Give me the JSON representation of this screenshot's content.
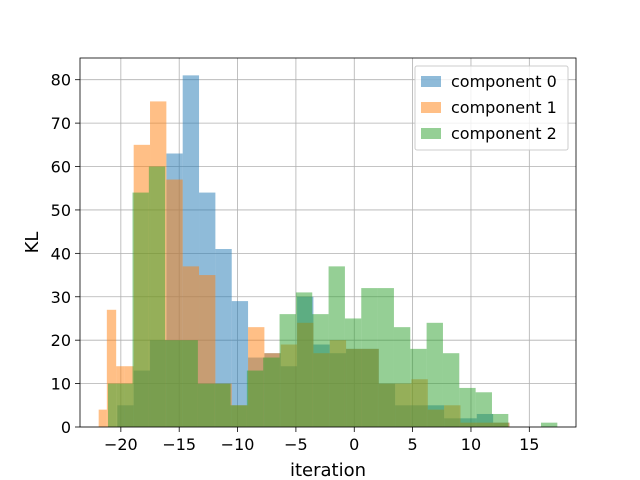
{
  "chart_data": {
    "type": "histogram",
    "title": "",
    "xlabel": "iteration",
    "ylabel": "KL",
    "xlim": [
      -23.5,
      19
    ],
    "ylim": [
      0,
      85
    ],
    "xticks": [
      -20,
      -15,
      -10,
      -5,
      0,
      5,
      10,
      15
    ],
    "yticks": [
      0,
      10,
      20,
      30,
      40,
      50,
      60,
      70,
      80
    ],
    "grid": true,
    "legend_position": "top-right",
    "series": [
      {
        "name": "component 0",
        "color": "#1f77b4",
        "opacity": 0.5,
        "bins": [
          [
            -20.3,
            -18.9,
            5
          ],
          [
            -18.9,
            -17.5,
            13
          ],
          [
            -17.5,
            -16.1,
            20
          ],
          [
            -16.1,
            -14.7,
            63
          ],
          [
            -14.7,
            -13.3,
            81
          ],
          [
            -13.3,
            -11.9,
            54
          ],
          [
            -11.9,
            -10.5,
            41
          ],
          [
            -10.5,
            -9.1,
            29
          ],
          [
            -9.1,
            -7.7,
            16
          ],
          [
            -7.7,
            -6.3,
            17
          ],
          [
            -6.3,
            -4.9,
            14
          ],
          [
            -4.9,
            -3.5,
            30
          ],
          [
            -3.5,
            -2.1,
            19
          ],
          [
            -2.1,
            -0.7,
            17
          ],
          [
            -0.7,
            0.7,
            18
          ],
          [
            0.7,
            2.1,
            18
          ],
          [
            2.1,
            3.5,
            10
          ],
          [
            3.5,
            4.9,
            5
          ],
          [
            4.9,
            6.3,
            5
          ],
          [
            6.3,
            7.7,
            5
          ],
          [
            7.7,
            9.1,
            2
          ],
          [
            9.1,
            10.5,
            2
          ],
          [
            10.5,
            11.9,
            3
          ],
          [
            11.9,
            13.3,
            1
          ]
        ]
      },
      {
        "name": "component 1",
        "color": "#ff7f0e",
        "opacity": 0.5,
        "bins": [
          [
            -21.9,
            -21.2,
            4
          ],
          [
            -21.2,
            -20.4,
            27
          ],
          [
            -20.4,
            -19.7,
            14
          ],
          [
            -19.7,
            -18.9,
            14
          ],
          [
            -18.9,
            -17.5,
            65
          ],
          [
            -17.5,
            -16.1,
            75
          ],
          [
            -16.1,
            -14.7,
            57
          ],
          [
            -14.7,
            -13.3,
            37
          ],
          [
            -13.3,
            -11.9,
            35
          ],
          [
            -11.9,
            -10.5,
            10
          ],
          [
            -10.5,
            -9.1,
            5
          ],
          [
            -9.1,
            -7.7,
            23
          ],
          [
            -7.7,
            -6.3,
            17
          ],
          [
            -6.3,
            -4.9,
            19
          ],
          [
            -4.9,
            -3.5,
            24
          ],
          [
            -3.5,
            -2.1,
            17
          ],
          [
            -2.1,
            -0.7,
            20
          ],
          [
            -0.7,
            0.7,
            18
          ],
          [
            0.7,
            2.1,
            18
          ],
          [
            2.1,
            3.5,
            10
          ],
          [
            3.5,
            4.9,
            10
          ],
          [
            4.9,
            6.3,
            11
          ],
          [
            6.3,
            7.7,
            4
          ],
          [
            7.7,
            9.1,
            5
          ],
          [
            9.1,
            10.5,
            1
          ],
          [
            10.5,
            11.9,
            1
          ],
          [
            11.9,
            13.3,
            1
          ]
        ]
      },
      {
        "name": "component 2",
        "color": "#2ca02c",
        "opacity": 0.5,
        "bins": [
          [
            -21.1,
            -20.4,
            10
          ],
          [
            -20.4,
            -19.0,
            10
          ],
          [
            -19.0,
            -17.6,
            54
          ],
          [
            -17.6,
            -16.2,
            60
          ],
          [
            -16.2,
            -14.8,
            20
          ],
          [
            -14.8,
            -13.4,
            20
          ],
          [
            -13.4,
            -12.0,
            10
          ],
          [
            -12.0,
            -10.6,
            10
          ],
          [
            -10.6,
            -9.2,
            5
          ],
          [
            -9.2,
            -7.8,
            13
          ],
          [
            -7.8,
            -6.4,
            16
          ],
          [
            -6.4,
            -5.0,
            26
          ],
          [
            -5.0,
            -3.6,
            31
          ],
          [
            -3.6,
            -2.2,
            26
          ],
          [
            -2.2,
            -0.8,
            37
          ],
          [
            -0.8,
            0.6,
            25
          ],
          [
            0.6,
            2.0,
            32
          ],
          [
            2.0,
            3.4,
            32
          ],
          [
            3.4,
            4.8,
            23
          ],
          [
            4.8,
            6.2,
            18
          ],
          [
            6.2,
            7.6,
            24
          ],
          [
            7.6,
            9.0,
            17
          ],
          [
            9.0,
            10.4,
            9
          ],
          [
            10.4,
            11.8,
            8
          ],
          [
            11.8,
            13.2,
            3
          ],
          [
            13.2,
            14.6,
            0
          ],
          [
            14.6,
            16.0,
            0
          ],
          [
            16.0,
            17.4,
            1
          ]
        ]
      }
    ]
  }
}
